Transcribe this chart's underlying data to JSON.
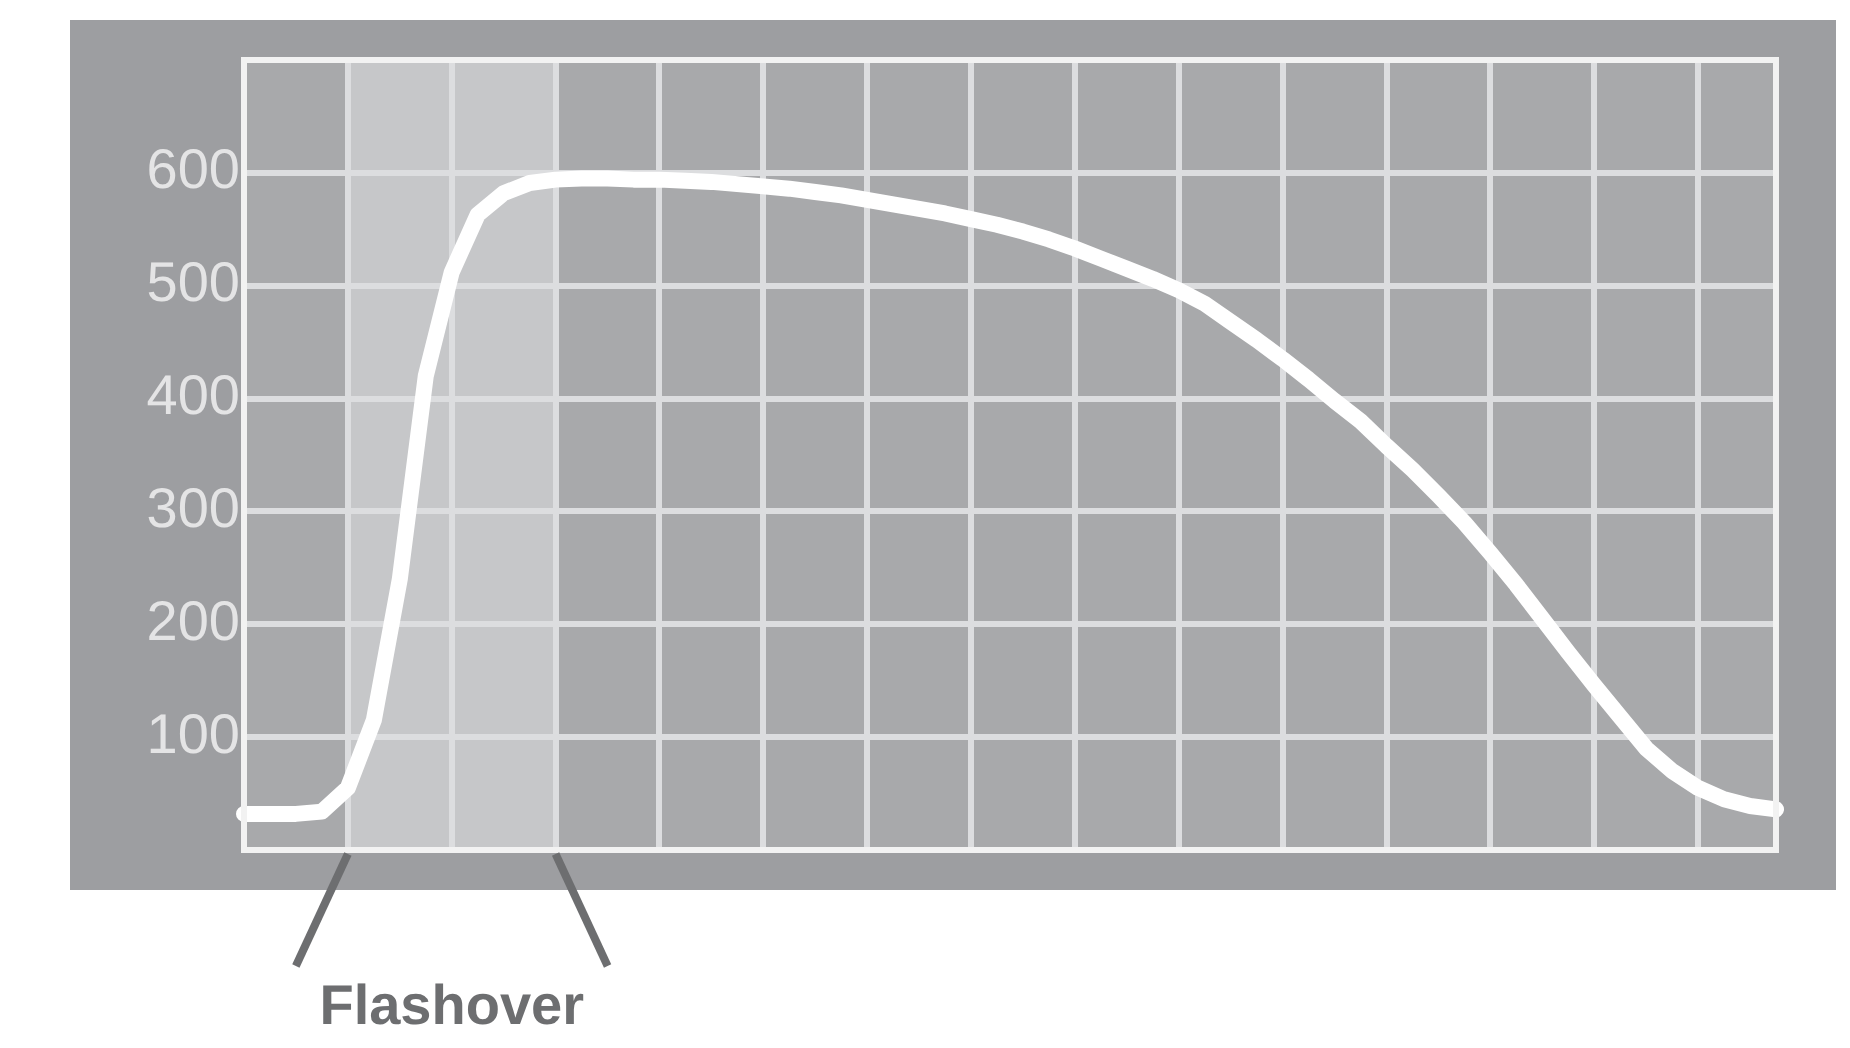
{
  "chart_data": {
    "type": "line",
    "categories": [
      null,
      null,
      null,
      null,
      null,
      null,
      null,
      null,
      null,
      null,
      null,
      null,
      null,
      null,
      null,
      null,
      null,
      null,
      null,
      null,
      null,
      null,
      null,
      null,
      null,
      null,
      null,
      null,
      null,
      null,
      null,
      null,
      null,
      null,
      null,
      null,
      null,
      null,
      null,
      null,
      null,
      null,
      null,
      null,
      null,
      null,
      null,
      null,
      null,
      null,
      null,
      null,
      null,
      null,
      null,
      null,
      null,
      null,
      null,
      null
    ],
    "series": [
      {
        "color": "#ffffff",
        "values": [
          32,
          32,
          32,
          34,
          55,
          115,
          240,
          420,
          512,
          563,
          582,
          591,
          594,
          595,
          595,
          594,
          594,
          593,
          592,
          590,
          588,
          586,
          583,
          580,
          576,
          572,
          568,
          564,
          559,
          554,
          548,
          541,
          533,
          524,
          515,
          506,
          496,
          484,
          468,
          452,
          435,
          417,
          398,
          380,
          358,
          337,
          314,
          290,
          263,
          235,
          205,
          175,
          146,
          118,
          90,
          70,
          55,
          45,
          39,
          36
        ]
      }
    ],
    "ylim": [
      0,
      700
    ],
    "yticks": [
      100,
      200,
      300,
      400,
      500,
      600,
      {
        "value": 700,
        "label": null
      }
    ],
    "grid": true,
    "legend": false,
    "marker": "none",
    "line_style": "solid",
    "annotations": [
      "Flashover"
    ]
  }
}
